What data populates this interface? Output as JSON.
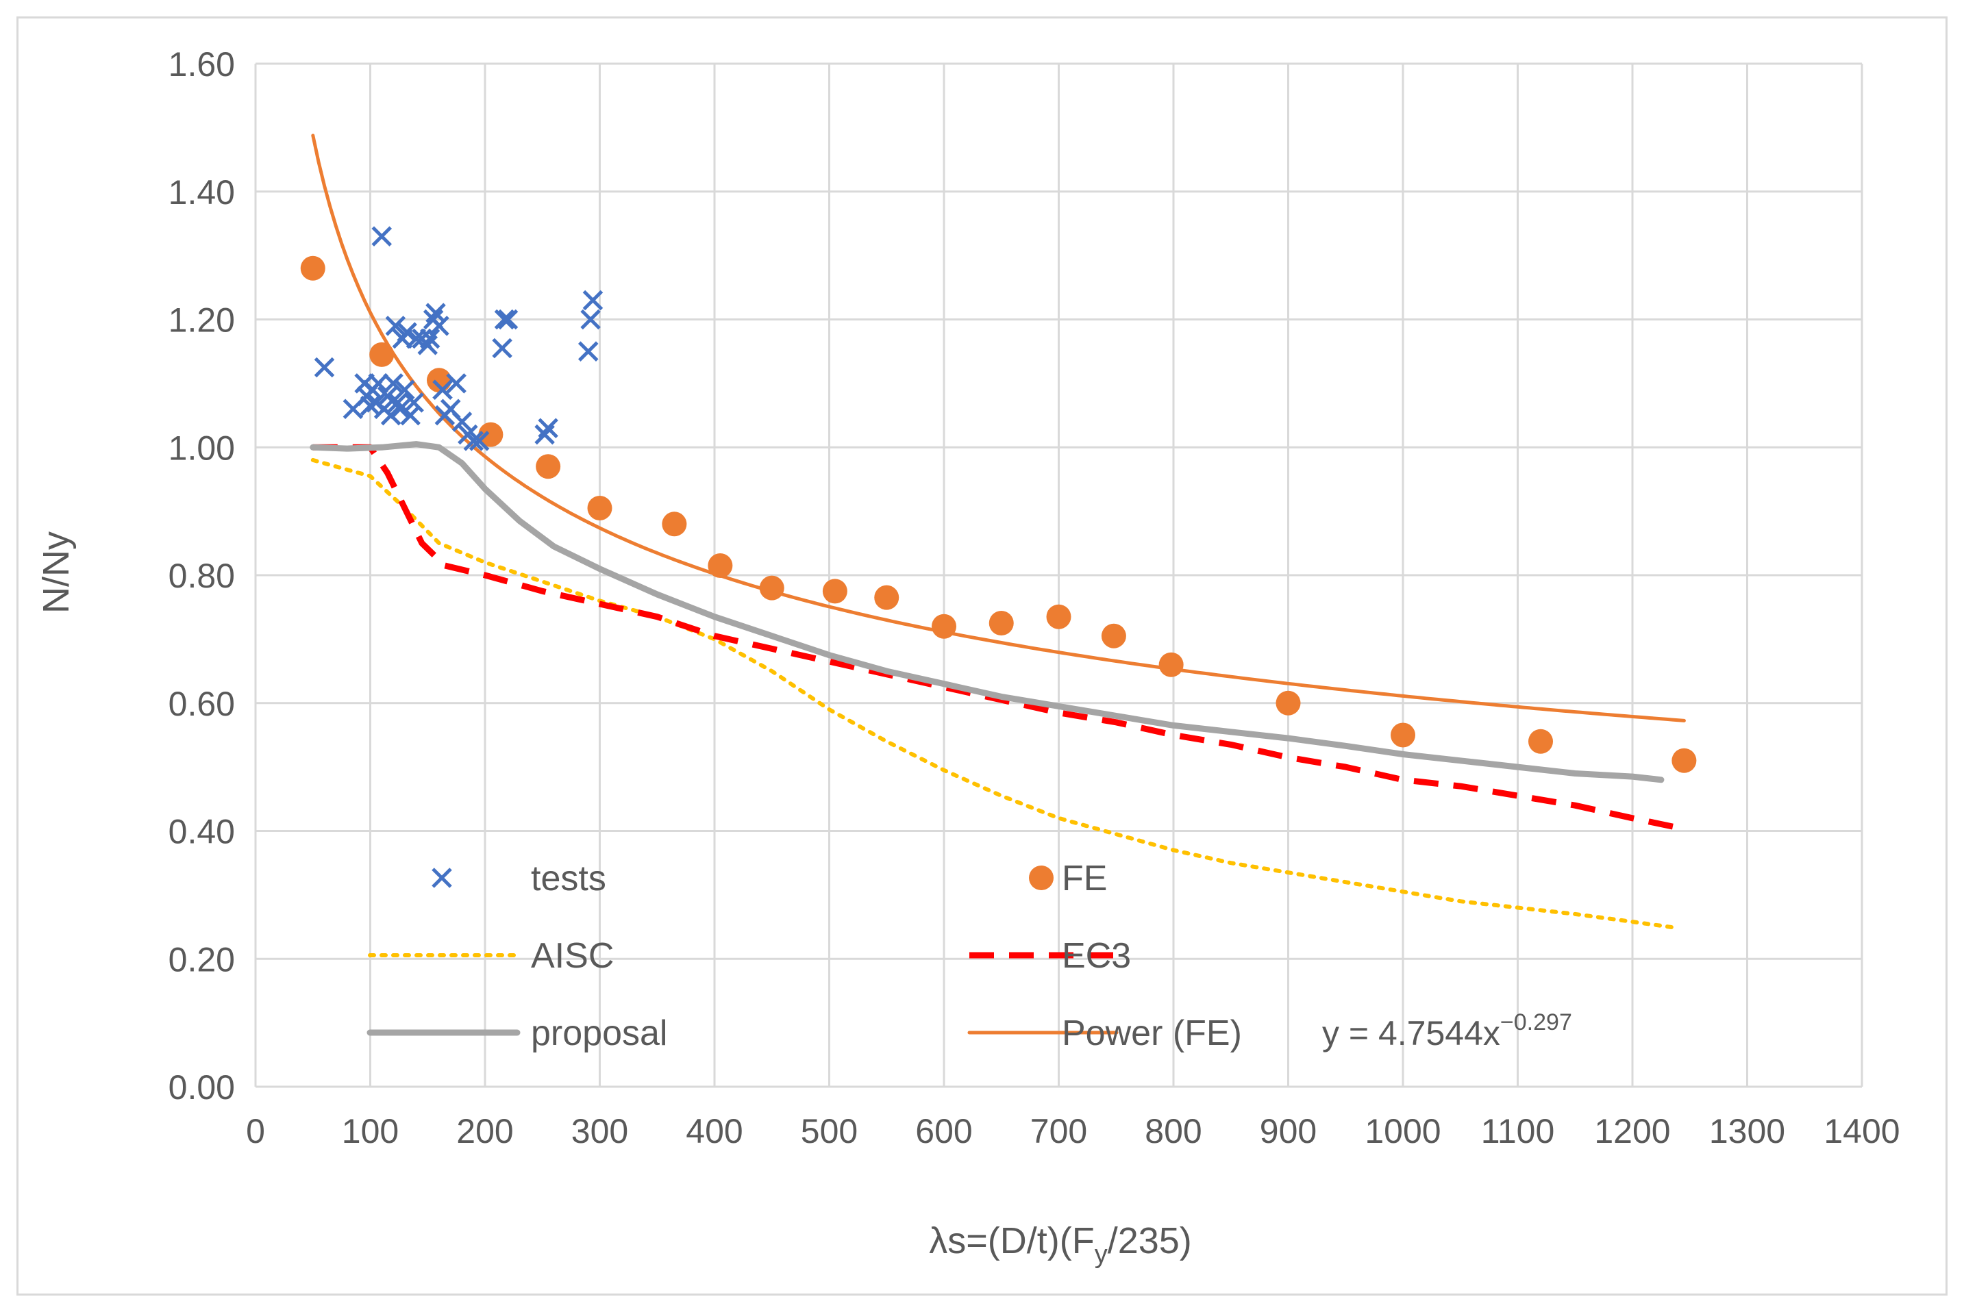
{
  "chart_data": {
    "type": "scatter",
    "title": "",
    "xlabel": "λs=(D/t)(F",
    "xlabel_sub": "y",
    "xlabel_tail": "/235)",
    "ylabel": "N/Ny",
    "xlim": [
      0,
      1400
    ],
    "ylim": [
      0,
      1.6
    ],
    "grid": true,
    "legend_position": "bottom-inside",
    "xticks": [
      "0",
      "100",
      "200",
      "300",
      "400",
      "500",
      "600",
      "700",
      "800",
      "900",
      "1000",
      "1100",
      "1200",
      "1300",
      "1400"
    ],
    "yticks": [
      "0.00",
      "0.20",
      "0.40",
      "0.60",
      "0.80",
      "1.00",
      "1.20",
      "1.40",
      "1.60"
    ],
    "series": [
      {
        "name": "tests",
        "kind": "scatter-x",
        "color": "#4472c4",
        "points": [
          [
            60,
            1.125
          ],
          [
            85,
            1.06
          ],
          [
            95,
            1.1
          ],
          [
            97,
            1.08
          ],
          [
            100,
            1.065
          ],
          [
            102,
            1.09
          ],
          [
            105,
            1.07
          ],
          [
            107,
            1.1
          ],
          [
            110,
            1.33
          ],
          [
            112,
            1.06
          ],
          [
            115,
            1.08
          ],
          [
            118,
            1.05
          ],
          [
            120,
            1.1
          ],
          [
            122,
            1.19
          ],
          [
            124,
            1.07
          ],
          [
            126,
            1.06
          ],
          [
            128,
            1.17
          ],
          [
            130,
            1.09
          ],
          [
            132,
            1.18
          ],
          [
            135,
            1.05
          ],
          [
            138,
            1.07
          ],
          [
            140,
            1.17
          ],
          [
            145,
            1.17
          ],
          [
            150,
            1.16
          ],
          [
            152,
            1.17
          ],
          [
            155,
            1.2
          ],
          [
            157,
            1.21
          ],
          [
            160,
            1.19
          ],
          [
            163,
            1.09
          ],
          [
            165,
            1.05
          ],
          [
            170,
            1.06
          ],
          [
            175,
            1.1
          ],
          [
            180,
            1.04
          ],
          [
            185,
            1.02
          ],
          [
            190,
            1.01
          ],
          [
            195,
            1.01
          ],
          [
            215,
            1.155
          ],
          [
            217,
            1.2
          ],
          [
            220,
            1.2
          ],
          [
            252,
            1.02
          ],
          [
            255,
            1.03
          ],
          [
            290,
            1.15
          ],
          [
            292,
            1.2
          ],
          [
            294,
            1.23
          ]
        ]
      },
      {
        "name": "FE",
        "kind": "scatter-dot",
        "color": "#ed7d31",
        "points": [
          [
            50,
            1.28
          ],
          [
            110,
            1.145
          ],
          [
            160,
            1.105
          ],
          [
            205,
            1.02
          ],
          [
            255,
            0.97
          ],
          [
            300,
            0.905
          ],
          [
            365,
            0.88
          ],
          [
            405,
            0.815
          ],
          [
            450,
            0.78
          ],
          [
            505,
            0.775
          ],
          [
            550,
            0.765
          ],
          [
            600,
            0.72
          ],
          [
            650,
            0.725
          ],
          [
            700,
            0.735
          ],
          [
            748,
            0.705
          ],
          [
            798,
            0.66
          ],
          [
            900,
            0.6
          ],
          [
            1000,
            0.55
          ],
          [
            1120,
            0.54
          ],
          [
            1245,
            0.51
          ]
        ]
      },
      {
        "name": "AISC",
        "kind": "line-dotted",
        "color": "#ffc000",
        "points": [
          [
            50,
            0.98
          ],
          [
            100,
            0.955
          ],
          [
            130,
            0.905
          ],
          [
            160,
            0.85
          ],
          [
            200,
            0.82
          ],
          [
            250,
            0.79
          ],
          [
            300,
            0.76
          ],
          [
            350,
            0.735
          ],
          [
            400,
            0.7
          ],
          [
            450,
            0.65
          ],
          [
            500,
            0.59
          ],
          [
            550,
            0.54
          ],
          [
            600,
            0.495
          ],
          [
            650,
            0.455
          ],
          [
            700,
            0.42
          ],
          [
            750,
            0.395
          ],
          [
            800,
            0.37
          ],
          [
            850,
            0.35
          ],
          [
            900,
            0.335
          ],
          [
            950,
            0.32
          ],
          [
            1000,
            0.305
          ],
          [
            1050,
            0.29
          ],
          [
            1100,
            0.28
          ],
          [
            1150,
            0.27
          ],
          [
            1200,
            0.258
          ],
          [
            1240,
            0.248
          ]
        ]
      },
      {
        "name": "EC3",
        "kind": "line-dashed",
        "color": "#ff0000",
        "points": [
          [
            50,
            1.0
          ],
          [
            100,
            1.0
          ],
          [
            115,
            0.96
          ],
          [
            130,
            0.905
          ],
          [
            145,
            0.85
          ],
          [
            165,
            0.815
          ],
          [
            200,
            0.8
          ],
          [
            250,
            0.775
          ],
          [
            300,
            0.755
          ],
          [
            350,
            0.735
          ],
          [
            400,
            0.705
          ],
          [
            450,
            0.685
          ],
          [
            500,
            0.665
          ],
          [
            550,
            0.645
          ],
          [
            600,
            0.625
          ],
          [
            650,
            0.605
          ],
          [
            700,
            0.585
          ],
          [
            750,
            0.57
          ],
          [
            800,
            0.55
          ],
          [
            850,
            0.535
          ],
          [
            900,
            0.515
          ],
          [
            950,
            0.5
          ],
          [
            1000,
            0.48
          ],
          [
            1050,
            0.47
          ],
          [
            1100,
            0.455
          ],
          [
            1150,
            0.44
          ],
          [
            1200,
            0.42
          ],
          [
            1240,
            0.405
          ]
        ]
      },
      {
        "name": "proposal",
        "kind": "line-solid",
        "color": "#a5a5a5",
        "points": [
          [
            50,
            1.0
          ],
          [
            80,
            0.998
          ],
          [
            110,
            1.0
          ],
          [
            140,
            1.005
          ],
          [
            160,
            1.0
          ],
          [
            180,
            0.975
          ],
          [
            200,
            0.935
          ],
          [
            230,
            0.885
          ],
          [
            260,
            0.845
          ],
          [
            300,
            0.81
          ],
          [
            350,
            0.77
          ],
          [
            400,
            0.735
          ],
          [
            450,
            0.705
          ],
          [
            500,
            0.675
          ],
          [
            550,
            0.65
          ],
          [
            600,
            0.63
          ],
          [
            650,
            0.61
          ],
          [
            700,
            0.595
          ],
          [
            750,
            0.58
          ],
          [
            800,
            0.565
          ],
          [
            850,
            0.555
          ],
          [
            900,
            0.545
          ],
          [
            950,
            0.533
          ],
          [
            1000,
            0.52
          ],
          [
            1050,
            0.51
          ],
          [
            1100,
            0.5
          ],
          [
            1150,
            0.49
          ],
          [
            1200,
            0.485
          ],
          [
            1225,
            0.48
          ]
        ]
      },
      {
        "name": "Power (FE)",
        "kind": "trendline-power",
        "color": "#ed7d31",
        "coefficient": 4.7544,
        "exponent": -0.297,
        "x_range": [
          50,
          1245
        ]
      }
    ],
    "legend": [
      {
        "label": "tests",
        "series": "tests"
      },
      {
        "label": "FE",
        "series": "FE"
      },
      {
        "label": "AISC",
        "series": "AISC"
      },
      {
        "label": "EC3",
        "series": "EC3"
      },
      {
        "label": "proposal",
        "series": "proposal"
      },
      {
        "label": "Power (FE)",
        "series": "Power (FE)",
        "equation": "y = 4.7544x",
        "equation_exponent": "−0.297"
      }
    ]
  }
}
